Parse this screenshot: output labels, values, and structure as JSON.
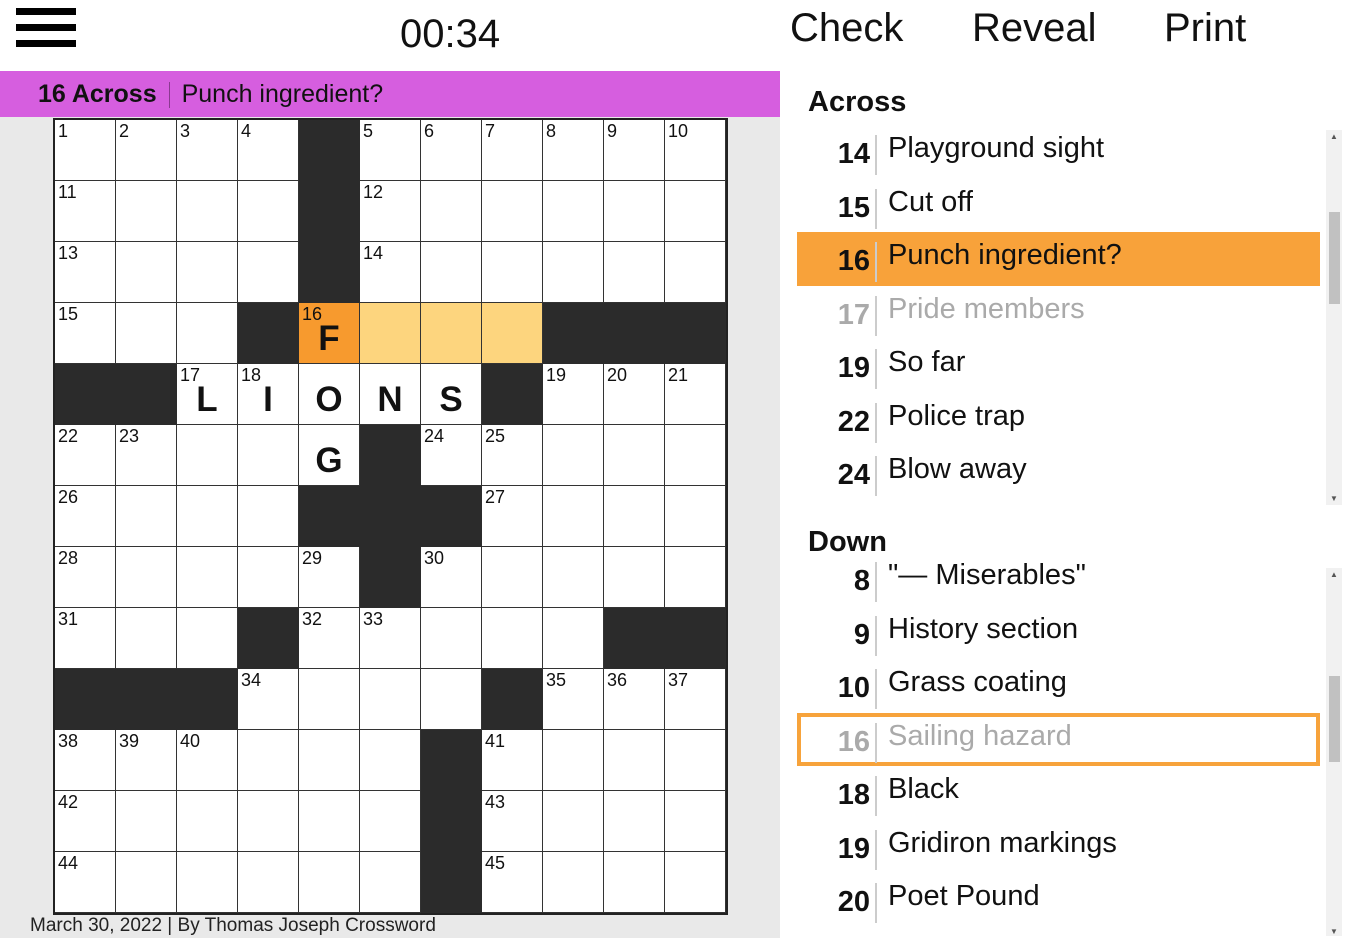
{
  "header": {
    "timer": "00:34",
    "check": "Check",
    "reveal": "Reveal",
    "print": "Print",
    "menu_icon": "hamburger-icon"
  },
  "current_clue": {
    "label": "16 Across",
    "text": "Punch ingredient?",
    "bar_color": "#d65edf"
  },
  "grid": {
    "blocks": [
      "....#......",
      "....#......",
      "....#......",
      "...#....###",
      "##.....#...",
      ".....#.....",
      "....###....",
      ".....#.....",
      "...#.....##",
      "###....#...",
      "......#....",
      "......#....",
      "......#...."
    ],
    "numbers": [
      [
        1,
        2,
        3,
        4,
        0,
        5,
        6,
        7,
        8,
        9,
        10
      ],
      [
        11,
        0,
        0,
        0,
        0,
        12,
        0,
        0,
        0,
        0,
        0
      ],
      [
        13,
        0,
        0,
        0,
        0,
        14,
        0,
        0,
        0,
        0,
        0
      ],
      [
        15,
        0,
        0,
        0,
        16,
        0,
        0,
        0,
        0,
        0,
        0
      ],
      [
        0,
        0,
        17,
        18,
        0,
        0,
        0,
        0,
        19,
        20,
        21
      ],
      [
        22,
        23,
        0,
        0,
        0,
        0,
        24,
        25,
        0,
        0,
        0
      ],
      [
        26,
        0,
        0,
        0,
        0,
        0,
        0,
        27,
        0,
        0,
        0
      ],
      [
        28,
        0,
        0,
        0,
        29,
        0,
        30,
        0,
        0,
        0,
        0
      ],
      [
        31,
        0,
        0,
        0,
        32,
        33,
        0,
        0,
        0,
        0,
        0
      ],
      [
        0,
        0,
        0,
        34,
        0,
        0,
        0,
        0,
        35,
        36,
        37
      ],
      [
        38,
        39,
        40,
        0,
        0,
        0,
        0,
        41,
        0,
        0,
        0
      ],
      [
        42,
        0,
        0,
        0,
        0,
        0,
        0,
        43,
        0,
        0,
        0
      ],
      [
        44,
        0,
        0,
        0,
        0,
        0,
        0,
        45,
        0,
        0,
        0
      ]
    ],
    "letters": [
      "",
      "",
      "",
      "....F",
      "..LIONS",
      "....G",
      "",
      "",
      "",
      "",
      "",
      "",
      ""
    ],
    "selected_cell": [
      3,
      4
    ],
    "highlighted_cells": [
      [
        3,
        5
      ],
      [
        3,
        6
      ],
      [
        3,
        7
      ]
    ],
    "selected_color": "#f79a2e",
    "highlight_color": "#fdd57e"
  },
  "footer": "March 30, 2022 | By Thomas Joseph Crossword",
  "across": {
    "heading": "Across",
    "items": [
      {
        "num": "14",
        "text": "Playground sight"
      },
      {
        "num": "15",
        "text": "Cut off"
      },
      {
        "num": "16",
        "text": "Punch ingredient?",
        "state": "active"
      },
      {
        "num": "17",
        "text": "Pride members",
        "state": "faded"
      },
      {
        "num": "19",
        "text": "So far"
      },
      {
        "num": "22",
        "text": "Police trap"
      },
      {
        "num": "24",
        "text": "Blow away"
      }
    ]
  },
  "down": {
    "heading": "Down",
    "items": [
      {
        "num": "8",
        "text": "\"— Miserables\""
      },
      {
        "num": "9",
        "text": "History section"
      },
      {
        "num": "10",
        "text": "Grass coating"
      },
      {
        "num": "16",
        "text": "Sailing hazard",
        "state": "cross faded"
      },
      {
        "num": "18",
        "text": "Black"
      },
      {
        "num": "19",
        "text": "Gridiron markings"
      },
      {
        "num": "20",
        "text": "Poet Pound"
      }
    ]
  }
}
